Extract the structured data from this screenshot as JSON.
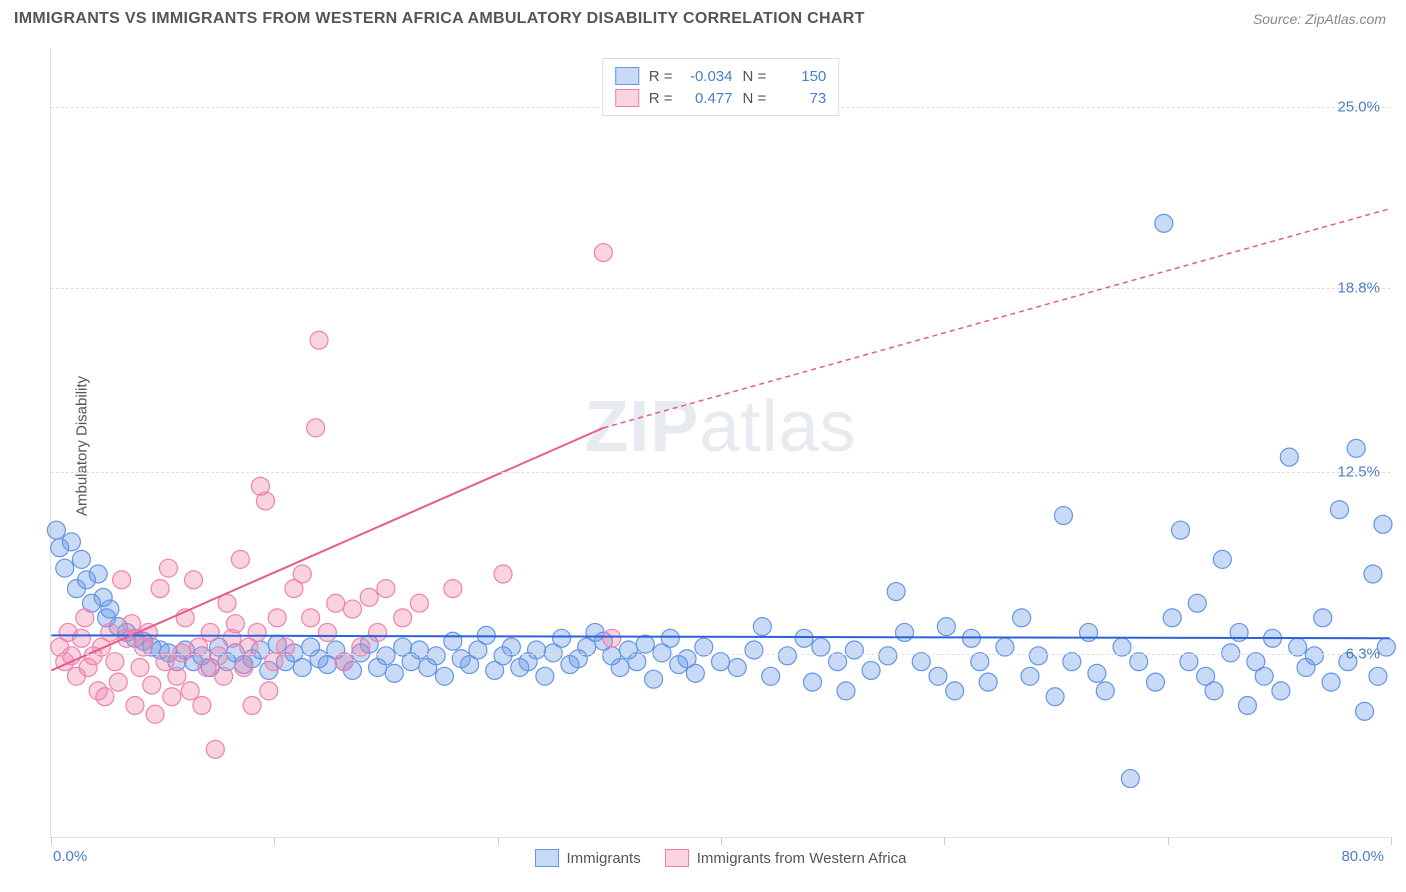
{
  "header": {
    "title": "IMMIGRANTS VS IMMIGRANTS FROM WESTERN AFRICA AMBULATORY DISABILITY CORRELATION CHART",
    "source": "Source: ZipAtlas.com"
  },
  "chart": {
    "type": "scatter",
    "y_axis_label": "Ambulatory Disability",
    "watermark": "ZIPatlas",
    "background_color": "#ffffff",
    "grid_color": "#e0e0e0",
    "xlim": [
      0,
      80
    ],
    "ylim": [
      0,
      27
    ],
    "x_range_labels": {
      "min": "0.0%",
      "max": "80.0%"
    },
    "x_ticks": [
      0,
      13.3,
      26.7,
      40,
      53.3,
      66.7,
      80
    ],
    "y_gridlines": [
      {
        "value": 6.3,
        "label": "6.3%"
      },
      {
        "value": 12.5,
        "label": "12.5%"
      },
      {
        "value": 18.8,
        "label": "18.8%"
      },
      {
        "value": 25.0,
        "label": "25.0%"
      }
    ],
    "legend_top": {
      "rows": [
        {
          "swatch": "blue",
          "r_label": "R =",
          "r_value": "-0.034",
          "n_label": "N =",
          "n_value": "150"
        },
        {
          "swatch": "pink",
          "r_label": "R =",
          "r_value": "0.477",
          "n_label": "N =",
          "n_value": "73"
        }
      ]
    },
    "legend_bottom": [
      {
        "swatch": "blue",
        "label": "Immigrants"
      },
      {
        "swatch": "pink",
        "label": "Immigrants from Western Africa"
      }
    ],
    "series": [
      {
        "name": "Immigrants",
        "color": "#6496e6",
        "fill": "rgba(100,150,230,0.35)",
        "marker_radius": 9,
        "trendline": {
          "x1": 0,
          "y1": 6.9,
          "x2": 80,
          "y2": 6.8,
          "stroke": "#2962d9",
          "width": 2,
          "dash": "none"
        },
        "points": [
          [
            0.3,
            10.5
          ],
          [
            0.5,
            9.9
          ],
          [
            0.8,
            9.2
          ],
          [
            1.2,
            10.1
          ],
          [
            1.5,
            8.5
          ],
          [
            1.8,
            9.5
          ],
          [
            2.1,
            8.8
          ],
          [
            2.4,
            8.0
          ],
          [
            2.8,
            9.0
          ],
          [
            3.1,
            8.2
          ],
          [
            3.3,
            7.5
          ],
          [
            3.5,
            7.8
          ],
          [
            4.0,
            7.2
          ],
          [
            4.5,
            7.0
          ],
          [
            5.0,
            6.8
          ],
          [
            5.5,
            6.7
          ],
          [
            6.0,
            6.5
          ],
          [
            6.5,
            6.4
          ],
          [
            7.0,
            6.3
          ],
          [
            7.5,
            6.0
          ],
          [
            8.0,
            6.4
          ],
          [
            8.5,
            6.0
          ],
          [
            9.0,
            6.2
          ],
          [
            9.5,
            5.8
          ],
          [
            10.0,
            6.5
          ],
          [
            10.5,
            6.0
          ],
          [
            11.0,
            6.3
          ],
          [
            11.5,
            5.9
          ],
          [
            12.0,
            6.1
          ],
          [
            12.5,
            6.4
          ],
          [
            13.0,
            5.7
          ],
          [
            13.5,
            6.6
          ],
          [
            14.0,
            6.0
          ],
          [
            14.5,
            6.3
          ],
          [
            15.0,
            5.8
          ],
          [
            15.5,
            6.5
          ],
          [
            16.0,
            6.1
          ],
          [
            16.5,
            5.9
          ],
          [
            17.0,
            6.4
          ],
          [
            17.5,
            6.0
          ],
          [
            18.0,
            5.7
          ],
          [
            18.5,
            6.3
          ],
          [
            19.0,
            6.6
          ],
          [
            19.5,
            5.8
          ],
          [
            20.0,
            6.2
          ],
          [
            20.5,
            5.6
          ],
          [
            21.0,
            6.5
          ],
          [
            21.5,
            6.0
          ],
          [
            22.0,
            6.4
          ],
          [
            22.5,
            5.8
          ],
          [
            23.0,
            6.2
          ],
          [
            23.5,
            5.5
          ],
          [
            24.0,
            6.7
          ],
          [
            24.5,
            6.1
          ],
          [
            25.0,
            5.9
          ],
          [
            25.5,
            6.4
          ],
          [
            26.0,
            6.9
          ],
          [
            26.5,
            5.7
          ],
          [
            27.0,
            6.2
          ],
          [
            27.5,
            6.5
          ],
          [
            28.0,
            5.8
          ],
          [
            28.5,
            6.0
          ],
          [
            29.0,
            6.4
          ],
          [
            29.5,
            5.5
          ],
          [
            30.0,
            6.3
          ],
          [
            30.5,
            6.8
          ],
          [
            31.0,
            5.9
          ],
          [
            31.5,
            6.1
          ],
          [
            32.0,
            6.5
          ],
          [
            32.5,
            7.0
          ],
          [
            33.0,
            6.7
          ],
          [
            33.5,
            6.2
          ],
          [
            34.0,
            5.8
          ],
          [
            34.5,
            6.4
          ],
          [
            35.0,
            6.0
          ],
          [
            35.5,
            6.6
          ],
          [
            36.0,
            5.4
          ],
          [
            36.5,
            6.3
          ],
          [
            37.0,
            6.8
          ],
          [
            37.5,
            5.9
          ],
          [
            38.0,
            6.1
          ],
          [
            38.5,
            5.6
          ],
          [
            39.0,
            6.5
          ],
          [
            40.0,
            6.0
          ],
          [
            41.0,
            5.8
          ],
          [
            42.0,
            6.4
          ],
          [
            42.5,
            7.2
          ],
          [
            43.0,
            5.5
          ],
          [
            44.0,
            6.2
          ],
          [
            45.0,
            6.8
          ],
          [
            45.5,
            5.3
          ],
          [
            46.0,
            6.5
          ],
          [
            47.0,
            6.0
          ],
          [
            47.5,
            5.0
          ],
          [
            48.0,
            6.4
          ],
          [
            49.0,
            5.7
          ],
          [
            50.0,
            6.2
          ],
          [
            50.5,
            8.4
          ],
          [
            51.0,
            7.0
          ],
          [
            52.0,
            6.0
          ],
          [
            53.0,
            5.5
          ],
          [
            53.5,
            7.2
          ],
          [
            54.0,
            5.0
          ],
          [
            55.0,
            6.8
          ],
          [
            55.5,
            6.0
          ],
          [
            56.0,
            5.3
          ],
          [
            57.0,
            6.5
          ],
          [
            58.0,
            7.5
          ],
          [
            58.5,
            5.5
          ],
          [
            59.0,
            6.2
          ],
          [
            60.0,
            4.8
          ],
          [
            60.5,
            11.0
          ],
          [
            61.0,
            6.0
          ],
          [
            62.0,
            7.0
          ],
          [
            62.5,
            5.6
          ],
          [
            63.0,
            5.0
          ],
          [
            64.0,
            6.5
          ],
          [
            64.5,
            2.0
          ],
          [
            65.0,
            6.0
          ],
          [
            66.0,
            5.3
          ],
          [
            66.5,
            21.0
          ],
          [
            67.0,
            7.5
          ],
          [
            67.5,
            10.5
          ],
          [
            68.0,
            6.0
          ],
          [
            68.5,
            8.0
          ],
          [
            69.0,
            5.5
          ],
          [
            69.5,
            5.0
          ],
          [
            70.0,
            9.5
          ],
          [
            70.5,
            6.3
          ],
          [
            71.0,
            7.0
          ],
          [
            71.5,
            4.5
          ],
          [
            72.0,
            6.0
          ],
          [
            72.5,
            5.5
          ],
          [
            73.0,
            6.8
          ],
          [
            73.5,
            5.0
          ],
          [
            74.0,
            13.0
          ],
          [
            74.5,
            6.5
          ],
          [
            75.0,
            5.8
          ],
          [
            75.5,
            6.2
          ],
          [
            76.0,
            7.5
          ],
          [
            76.5,
            5.3
          ],
          [
            77.0,
            11.2
          ],
          [
            77.5,
            6.0
          ],
          [
            78.0,
            13.3
          ],
          [
            78.5,
            4.3
          ],
          [
            79.0,
            9.0
          ],
          [
            79.3,
            5.5
          ],
          [
            79.6,
            10.7
          ],
          [
            79.8,
            6.5
          ]
        ]
      },
      {
        "name": "Immigrants from Western Africa",
        "color": "#f082aa",
        "fill": "rgba(240,130,170,0.35)",
        "marker_radius": 9,
        "trendline": {
          "x1": 0,
          "y1": 5.7,
          "x2": 33,
          "y2": 14.0,
          "stroke": "#e85a8f",
          "width": 2,
          "dash": "none",
          "extend": {
            "x2": 80,
            "y2": 21.5,
            "dash": "5,4"
          }
        },
        "points": [
          [
            0.5,
            6.5
          ],
          [
            0.8,
            6.0
          ],
          [
            1.0,
            7.0
          ],
          [
            1.2,
            6.2
          ],
          [
            1.5,
            5.5
          ],
          [
            1.8,
            6.8
          ],
          [
            2.0,
            7.5
          ],
          [
            2.2,
            5.8
          ],
          [
            2.5,
            6.2
          ],
          [
            2.8,
            5.0
          ],
          [
            3.0,
            6.5
          ],
          [
            3.2,
            4.8
          ],
          [
            3.5,
            7.0
          ],
          [
            3.8,
            6.0
          ],
          [
            4.0,
            5.3
          ],
          [
            4.2,
            8.8
          ],
          [
            4.5,
            6.8
          ],
          [
            4.8,
            7.3
          ],
          [
            5.0,
            4.5
          ],
          [
            5.3,
            5.8
          ],
          [
            5.5,
            6.5
          ],
          [
            5.8,
            7.0
          ],
          [
            6.0,
            5.2
          ],
          [
            6.2,
            4.2
          ],
          [
            6.5,
            8.5
          ],
          [
            6.8,
            6.0
          ],
          [
            7.0,
            9.2
          ],
          [
            7.2,
            4.8
          ],
          [
            7.5,
            5.5
          ],
          [
            7.8,
            6.3
          ],
          [
            8.0,
            7.5
          ],
          [
            8.3,
            5.0
          ],
          [
            8.5,
            8.8
          ],
          [
            8.8,
            6.5
          ],
          [
            9.0,
            4.5
          ],
          [
            9.3,
            5.8
          ],
          [
            9.5,
            7.0
          ],
          [
            9.8,
            3.0
          ],
          [
            10.0,
            6.2
          ],
          [
            10.3,
            5.5
          ],
          [
            10.5,
            8.0
          ],
          [
            10.8,
            6.8
          ],
          [
            11.0,
            7.3
          ],
          [
            11.3,
            9.5
          ],
          [
            11.5,
            5.8
          ],
          [
            11.8,
            6.5
          ],
          [
            12.0,
            4.5
          ],
          [
            12.3,
            7.0
          ],
          [
            12.5,
            12.0
          ],
          [
            12.8,
            11.5
          ],
          [
            13.0,
            5.0
          ],
          [
            13.3,
            6.0
          ],
          [
            13.5,
            7.5
          ],
          [
            14.0,
            6.5
          ],
          [
            14.5,
            8.5
          ],
          [
            15.0,
            9.0
          ],
          [
            15.5,
            7.5
          ],
          [
            15.8,
            14.0
          ],
          [
            16.0,
            17.0
          ],
          [
            16.5,
            7.0
          ],
          [
            17.0,
            8.0
          ],
          [
            17.5,
            6.0
          ],
          [
            18.0,
            7.8
          ],
          [
            18.5,
            6.5
          ],
          [
            19.0,
            8.2
          ],
          [
            19.5,
            7.0
          ],
          [
            20.0,
            8.5
          ],
          [
            21.0,
            7.5
          ],
          [
            22.0,
            8.0
          ],
          [
            24.0,
            8.5
          ],
          [
            27.0,
            9.0
          ],
          [
            33.0,
            20.0
          ],
          [
            33.5,
            6.8
          ]
        ]
      }
    ]
  }
}
